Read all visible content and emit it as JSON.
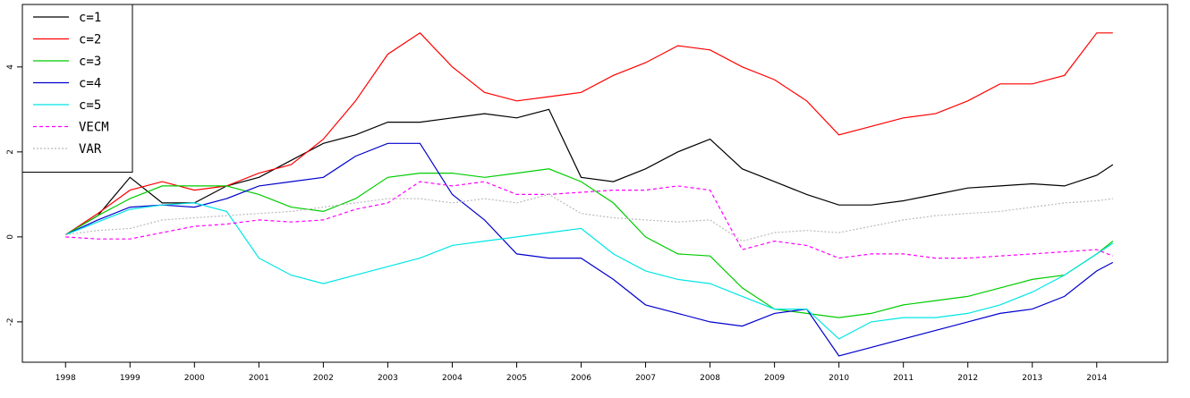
{
  "chart_data": {
    "type": "line",
    "legend": "top-left",
    "xlim": [
      1997.33,
      2015.1
    ],
    "ylim": [
      -2.95,
      5.47
    ],
    "xticks": [
      1998,
      1999,
      2000,
      2001,
      2002,
      2003,
      2004,
      2005,
      2006,
      2007,
      2008,
      2009,
      2010,
      2011,
      2012,
      2013,
      2014
    ],
    "yticks": [
      -2,
      0,
      2,
      4
    ],
    "x": [
      1998.0,
      1998.5,
      1999.0,
      1999.5,
      2000.0,
      2000.5,
      2001.0,
      2001.5,
      2002.0,
      2002.5,
      2003.0,
      2003.5,
      2004.0,
      2004.5,
      2005.0,
      2005.5,
      2006.0,
      2006.5,
      2007.0,
      2007.5,
      2008.0,
      2008.5,
      2009.0,
      2009.5,
      2010.0,
      2010.5,
      2011.0,
      2011.5,
      2012.0,
      2012.5,
      2013.0,
      2013.5,
      2014.0,
      2014.25
    ],
    "series": [
      {
        "name": "c=1",
        "color": "#000000",
        "dash": "solid",
        "values": [
          0.05,
          0.5,
          1.4,
          0.8,
          0.8,
          1.2,
          1.4,
          1.8,
          2.2,
          2.4,
          2.7,
          2.7,
          2.8,
          2.9,
          2.8,
          3.0,
          1.4,
          1.3,
          1.6,
          2.0,
          2.3,
          1.6,
          1.3,
          1.0,
          0.75,
          0.75,
          0.85,
          1.0,
          1.15,
          1.2,
          1.25,
          1.2,
          1.45,
          1.7
        ]
      },
      {
        "name": "c=2",
        "color": "#ff0000",
        "dash": "solid",
        "values": [
          0.05,
          0.55,
          1.1,
          1.3,
          1.1,
          1.2,
          1.5,
          1.7,
          2.3,
          3.2,
          4.3,
          4.8,
          4.0,
          3.4,
          3.2,
          3.3,
          3.4,
          3.8,
          4.1,
          4.5,
          4.4,
          4.0,
          3.7,
          3.2,
          2.4,
          2.6,
          2.8,
          2.9,
          3.2,
          3.6,
          3.6,
          3.8,
          4.8,
          4.8
        ]
      },
      {
        "name": "c=3",
        "color": "#00cc00",
        "dash": "solid",
        "values": [
          0.05,
          0.5,
          0.9,
          1.2,
          1.2,
          1.2,
          1.0,
          0.7,
          0.6,
          0.9,
          1.4,
          1.5,
          1.5,
          1.4,
          1.5,
          1.6,
          1.3,
          0.8,
          0.0,
          -0.4,
          -0.45,
          -1.2,
          -1.7,
          -1.8,
          -1.9,
          -1.8,
          -1.6,
          -1.5,
          -1.4,
          -1.2,
          -1.0,
          -0.9,
          -0.4,
          -0.1
        ]
      },
      {
        "name": "c=4",
        "color": "#0000cc",
        "dash": "solid",
        "values": [
          0.05,
          0.4,
          0.7,
          0.75,
          0.7,
          0.9,
          1.2,
          1.3,
          1.4,
          1.9,
          2.2,
          2.2,
          1.0,
          0.4,
          -0.4,
          -0.5,
          -0.5,
          -1.0,
          -1.6,
          -1.8,
          -2.0,
          -2.1,
          -1.8,
          -1.7,
          -2.8,
          -2.6,
          -2.4,
          -2.2,
          -2.0,
          -1.8,
          -1.7,
          -1.4,
          -0.8,
          -0.6
        ]
      },
      {
        "name": "c=5",
        "color": "#00e5e5",
        "dash": "solid",
        "values": [
          0.05,
          0.35,
          0.65,
          0.75,
          0.8,
          0.6,
          -0.5,
          -0.9,
          -1.1,
          -0.9,
          -0.7,
          -0.5,
          -0.2,
          -0.1,
          0.0,
          0.1,
          0.2,
          -0.4,
          -0.8,
          -1.0,
          -1.1,
          -1.4,
          -1.7,
          -1.7,
          -2.4,
          -2.0,
          -1.9,
          -1.9,
          -1.8,
          -1.6,
          -1.3,
          -0.9,
          -0.4,
          -0.15
        ]
      },
      {
        "name": "VECM",
        "color": "#ff00ff",
        "dash": "dashed",
        "values": [
          0,
          -0.05,
          -0.05,
          0.1,
          0.25,
          0.3,
          0.4,
          0.35,
          0.4,
          0.65,
          0.8,
          1.3,
          1.2,
          1.3,
          1.0,
          1.0,
          1.05,
          1.1,
          1.1,
          1.2,
          1.1,
          -0.3,
          -0.1,
          -0.2,
          -0.5,
          -0.4,
          -0.4,
          -0.5,
          -0.5,
          -0.45,
          -0.4,
          -0.35,
          -0.3,
          -0.45
        ]
      },
      {
        "name": "VAR",
        "color": "#bbbbbb",
        "dash": "dotted",
        "values": [
          0.05,
          0.15,
          0.2,
          0.4,
          0.45,
          0.5,
          0.55,
          0.6,
          0.7,
          0.8,
          0.9,
          0.9,
          0.8,
          0.9,
          0.8,
          1.0,
          0.55,
          0.45,
          0.4,
          0.35,
          0.4,
          -0.1,
          0.1,
          0.15,
          0.1,
          0.25,
          0.4,
          0.5,
          0.55,
          0.6,
          0.7,
          0.8,
          0.85,
          0.9
        ]
      }
    ]
  }
}
